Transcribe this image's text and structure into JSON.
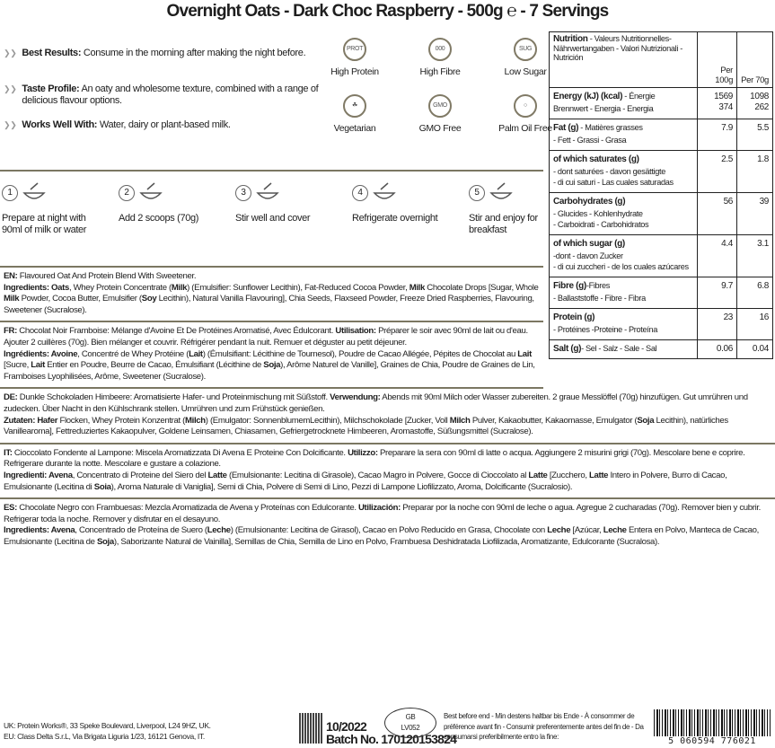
{
  "title": "Overnight Oats - Dark Choc Raspberry - 500g ℮ - 7 Servings",
  "features": [
    {
      "label": "Best Results:",
      "text": " Consume in the morning after making the night before."
    },
    {
      "label": "Taste Profile:",
      "text": " An oaty and wholesome texture, combined with a range of delicious flavour options."
    },
    {
      "label": "Works Well With:",
      "text": " Water, dairy or plant-based milk."
    }
  ],
  "badges": [
    {
      "label": "High Protein",
      "icon": "protein-house-icon",
      "glyph": "PROT"
    },
    {
      "label": "High Fibre",
      "icon": "fibre-icon",
      "glyph": "000"
    },
    {
      "label": "Low Sugar",
      "icon": "low-sugar-icon",
      "glyph": "SUG"
    },
    {
      "label": "Vegetarian",
      "icon": "leaf-icon",
      "glyph": "☘"
    },
    {
      "label": "GMO Free",
      "icon": "gmo-icon",
      "glyph": "GMO"
    },
    {
      "label": "Palm Oil Free",
      "icon": "drop-icon",
      "glyph": "○"
    }
  ],
  "steps": [
    {
      "n": "1",
      "text": "Prepare at night with 90ml of milk or water",
      "icon": "pour-icon"
    },
    {
      "n": "2",
      "text": "Add 2 scoops (70g)",
      "icon": "scoop-icon"
    },
    {
      "n": "3",
      "text": "Stir well and cover",
      "icon": "stir-icon"
    },
    {
      "n": "4",
      "text": "Refrigerate overnight",
      "icon": "fridge-icon"
    },
    {
      "n": "5",
      "text": "Stir and enjoy for breakfast",
      "icon": "bowl-sun-icon"
    }
  ],
  "nutrition": {
    "header": {
      "bold": "Nutrition",
      "rest": " - Valeurs Nutritionnelles- Nährwertangaben - Valori Nutrizionali - Nutrición",
      "col1": "Per 100g",
      "col2": "Per 70g"
    },
    "rows": [
      {
        "bold": "Energy (kJ) (kcal)",
        "rest": " - Énergie",
        "sub": "Brennwert - Energia - Energia",
        "v1": "1569\n374",
        "v2": "1098\n262"
      },
      {
        "bold": "Fat (g)",
        "rest": " - Matières grasses",
        "sub": "- Fett - Grassi - Grasa",
        "v1": "7.9",
        "v2": "5.5"
      },
      {
        "bold": "of which saturates (g)",
        "rest": "",
        "sub": "- dont saturées - davon gesättigte\n- di cui saturi - Las cuales saturadas",
        "v1": "2.5",
        "v2": "1.8"
      },
      {
        "bold": "Carbohydrates (g)",
        "rest": "",
        "sub": "- Glucides - Kohlenhydrate\n- Carboidrati - Carbohidratos",
        "v1": "56",
        "v2": "39"
      },
      {
        "bold": "of which sugar (g)",
        "rest": "",
        "sub": "-dont - davon Zucker\n- di cui zuccheri - de los cuales azúcares",
        "v1": "4.4",
        "v2": "3.1"
      },
      {
        "bold": "Fibre (g)",
        "rest": "-Fibres",
        "sub": "- Ballaststoffe - Fibre - Fibra",
        "v1": "9.7",
        "v2": "6.8"
      },
      {
        "bold": "Protein (g)",
        "rest": "",
        "sub": "- Protéines -Proteine - Proteína",
        "v1": "23",
        "v2": "16"
      },
      {
        "bold": "Salt (g)",
        "rest": "- Sel - Salz - Sale - Sal",
        "sub": "",
        "v1": "0.06",
        "v2": "0.04"
      }
    ]
  },
  "sections": [
    "<b>EN:</b> Flavoured Oat And Protein Blend With Sweetener.<br><b>Ingredients: Oats</b>, Whey Protein Concentrate (<b>Milk</b>) (Emulsifier: Sunflower Lecithin), Fat-Reduced Cocoa Powder, <b>Milk</b> Chocolate Drops [Sugar, Whole <b>Milk</b> Powder, Cocoa Butter, Emulsifier (<b>Soy</b> Lecithin), Natural Vanilla Flavouring], Chia Seeds, Flaxseed Powder, Freeze Dried Raspberries, Flavouring, Sweetener (Sucralose).",
    "<b>FR:</b> Chocolat Noir Framboise: Mélange d'Avoine Et De Protéines Aromatisé, Avec Édulcorant. <b>Utilisation:</b> Préparer le soir avec 90ml de lait ou d'eau. Ajouter 2 cuillères (70g). Bien mélanger et couvrir. Réfrigérer pendant la nuit. Remuer et déguster au petit déjeuner.<br><b>Ingrédients: Avoine</b>, Concentré de Whey Protéine (<b>Lait</b>) (Émulsifiant: Lécithine de Tournesol), Poudre de Cacao Allégée, Pépites de Chocolat au <b>Lait</b> [Sucre, <b>Lait</b> Entier en Poudre, Beurre de Cacao, Émulsifiant (Lécithine de <b>Soja</b>), Arôme Naturel de Vanille], Graines de Chia, Poudre de Graines de Lin, Framboises Lyophilisées, Arôme, Sweetener (Sucralose).",
    "<b>DE:</b> Dunkle Schokoladen Himbeere: Aromatisierte Hafer- und Proteinmischung mit Süßstoff. <b>Verwendung:</b> Abends mit 90ml Milch oder Wasser zubereiten. 2 graue Messlöffel (70g) hinzufügen. Gut umrühren und zudecken. Über Nacht in den Kühlschrank stellen. Umrühren und zum Frühstück genießen.<br><b>Zutaten: Hafer</b> Flocken, Whey Protein Konzentrat (<b>Milch</b>) (Emulgator: SonnenblumemLecithin), Milchschokolade [Zucker, Voll <b>Milch</b> Pulver, Kakaobutter, Kakaomasse, Emulgator (<b>Soja</b> Lecithin), natürliches Vanillearoma], Fettreduziertes Kakaopulver, Goldene Leinsamen, Chiasamen, Gefriergetrocknete Himbeeren, Aromastoffe, Süßungsmittel (Sucralose).",
    "<b>IT:</b> Cioccolato Fondente al Lampone: Miscela Aromatizzata Di Avena E Proteine Con Dolcificante. <b>Utilizzo:</b> Preparare la sera con 90ml di latte o acqua. Aggiungere 2 misurini grigi (70g). Mescolare bene e coprire. Refrigerare durante la notte. Mescolare e gustare a colazione.<br><b>Ingredienti: Avena</b>, Concentrato di Proteine del Siero del <b>Latte</b> (Emulsionante: Lecitina di Girasole), Cacao Magro in Polvere, Gocce di Cioccolato al <b>Latte</b> [Zucchero, <b>Latte</b> Intero in Polvere, Burro di Cacao, Emulsionante (Lecitina di <b>Soia</b>), Aroma Naturale di Vaniglia], Semi di Chia, Polvere di Semi di Lino, Pezzi di Lampone Liofilizzato, Aroma, Dolcificante (Sucralosio).",
    "<b>ES:</b> Chocolate Negro con Frambuesas: Mezcla Aromatizada de Avena y Proteínas con Edulcorante. <b>Utilización:</b> Preparar por la noche con 90ml de leche o agua. Agregue 2 cucharadas (70g). Remover bien y cubrir. Refrigerar toda la noche. Remover y disfrutar en el desayuno.<br><b>Ingredients: Avena</b>, Concentrado de Proteína de Suero (<b>Leche</b>) (Emulsionante: Lecitina de Girasol), Cacao en Polvo Reducido en Grasa, Chocolate con <b>Leche</b> [Azúcar, <b>Leche</b> Entera en Polvo, Manteca de Cacao, Emulsionante (Lecitina de <b>Soja</b>), Saborizante Natural de Vainilla], Semillas de Chia, Semilla de Lino en Polvo, Frambuesa Deshidratada Liofilizada, Aromatizante, Edulcorante (Sucralosa)."
  ],
  "footer": {
    "uk": "UK: Protein Works®, 33 Speke Boulevard, Liverpool, L24 9HZ, UK.",
    "eu": "EU: Class Delta S.r.L, Via Brigata Liguria 1/23, 16121 Genova, IT.",
    "date": "10/2022",
    "batch": "Batch No. 170120153824",
    "oval_top": "GB",
    "oval_bottom": "LV052",
    "best_before": "Best before end - Min destens haltbar bis Ende - À consommer de préférence avant fin - Consumir preferentemente antes del fin de - Da consumarsi preferibilmente entro la fine:",
    "barcode": "5 060594 776021"
  }
}
